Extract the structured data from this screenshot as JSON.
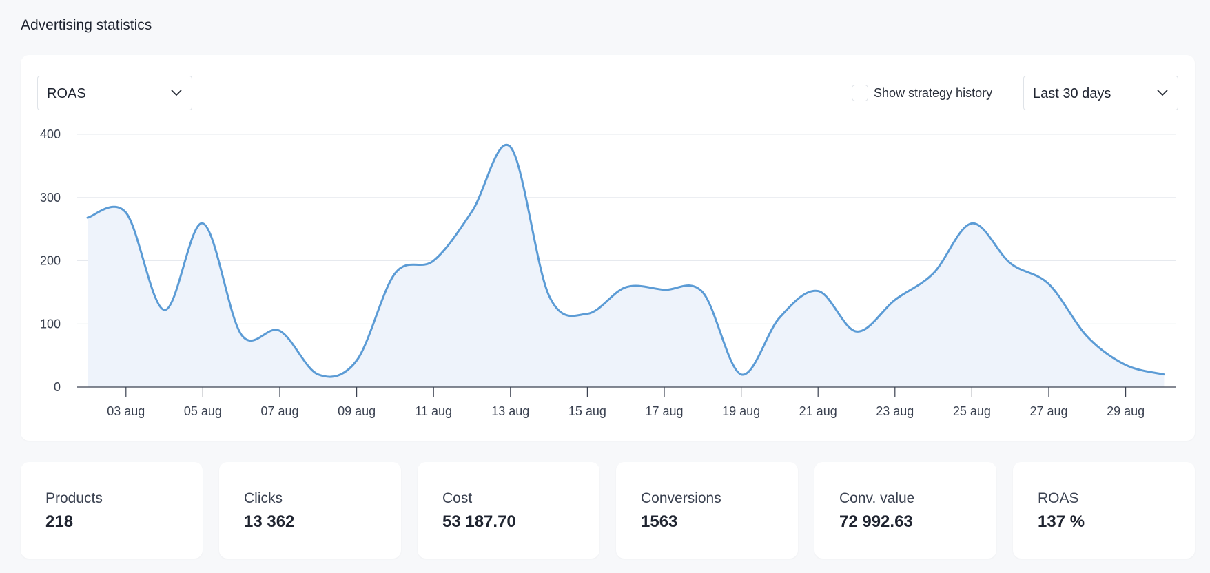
{
  "page": {
    "title": "Advertising statistics"
  },
  "controls": {
    "metric_select": {
      "value": "ROAS"
    },
    "strategy_history": {
      "label": "Show strategy history",
      "checked": false
    },
    "range_select": {
      "value": "Last 30 days"
    }
  },
  "chart_data": {
    "type": "area",
    "xlabel": "",
    "ylabel": "",
    "ylim": [
      0,
      400
    ],
    "yticks": [
      0,
      100,
      200,
      300,
      400
    ],
    "grid": true,
    "line_color": "#5b9bd5",
    "fill_color": "#eef3fb",
    "x": [
      "02 aug",
      "03 aug",
      "04 aug",
      "05 aug",
      "06 aug",
      "07 aug",
      "08 aug",
      "09 aug",
      "10 aug",
      "11 aug",
      "12 aug",
      "13 aug",
      "14 aug",
      "15 aug",
      "16 aug",
      "17 aug",
      "18 aug",
      "19 aug",
      "20 aug",
      "21 aug",
      "22 aug",
      "23 aug",
      "24 aug",
      "25 aug",
      "26 aug",
      "27 aug",
      "28 aug",
      "29 aug",
      "30 aug"
    ],
    "xtick_labels": [
      "03 aug",
      "05 aug",
      "07 aug",
      "09 aug",
      "11 aug",
      "13 aug",
      "15 aug",
      "17 aug",
      "19 aug",
      "21 aug",
      "23 aug",
      "25 aug",
      "27 aug",
      "29 aug"
    ],
    "series": [
      {
        "values": [
          268,
          276,
          122,
          259,
          83,
          89,
          20,
          42,
          180,
          200,
          278,
          380,
          145,
          116,
          158,
          154,
          150,
          20,
          110,
          152,
          88,
          138,
          180,
          259,
          196,
          163,
          80,
          35,
          20
        ]
      }
    ]
  },
  "kpis": [
    {
      "label": "Products",
      "value": "218"
    },
    {
      "label": "Clicks",
      "value": "13 362"
    },
    {
      "label": "Cost",
      "value": "53 187.70"
    },
    {
      "label": "Conversions",
      "value": "1563"
    },
    {
      "label": "Conv. value",
      "value": "72 992.63"
    },
    {
      "label": "ROAS",
      "value": "137 %"
    }
  ]
}
